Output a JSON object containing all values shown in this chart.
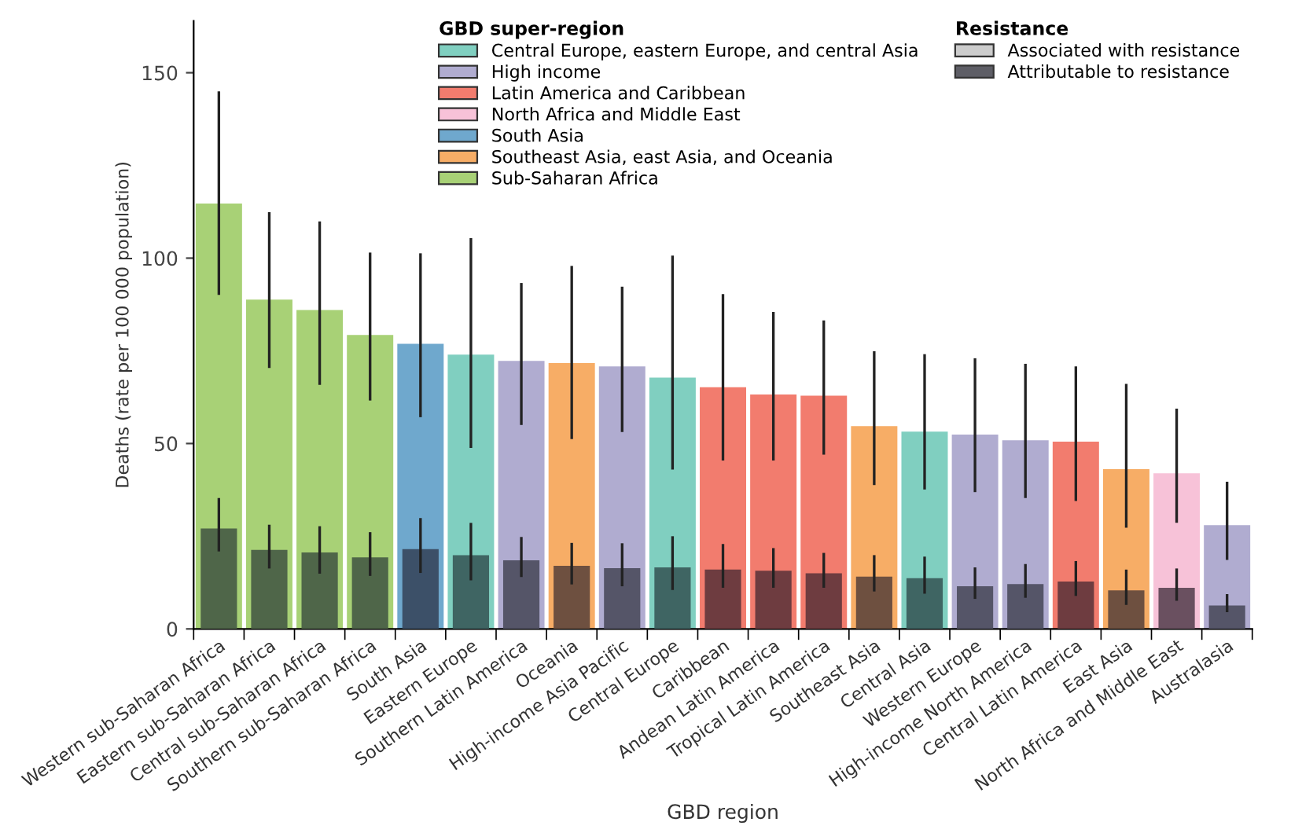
{
  "chart_data": {
    "type": "bar",
    "xlabel": "GBD region",
    "ylabel": "Deaths (rate per 100 000 population)",
    "legend_title": [
      "GBD super-region",
      "Resistance"
    ],
    "legend": "top",
    "grid": false,
    "ylim": [
      0,
      164
    ],
    "yticks": [
      0,
      50,
      100,
      150
    ],
    "categories": [
      "Western sub-Saharan Africa",
      "Eastern sub-Saharan Africa",
      "Central sub-Saharan Africa",
      "Southern sub-Saharan Africa",
      "South Asia",
      "Eastern Europe",
      "Southern Latin America",
      "Oceania",
      "High-income Asia Pacific",
      "Central Europe",
      "Caribbean",
      "Andean Latin America",
      "Tropical Latin America",
      "Southeast Asia",
      "Central Asia",
      "Western Europe",
      "High-income North America",
      "Central Latin America",
      "East Asia",
      "North Africa and Middle East",
      "Australasia"
    ],
    "series": [
      {
        "name": "Central Europe, eastern Europe, and central Asia",
        "color": "#80cfc0",
        "values": [
          null,
          null,
          null,
          null,
          null,
          74.0,
          null,
          null,
          null,
          67.8,
          null,
          null,
          null,
          null,
          53.2,
          null,
          null,
          null,
          null,
          null,
          null
        ],
        "errors": [
          null,
          null,
          null,
          null,
          null,
          [
            48.8,
            105.4
          ],
          null,
          null,
          null,
          [
            43.0,
            100.7
          ],
          null,
          null,
          null,
          null,
          [
            37.6,
            74.1
          ],
          null,
          null,
          null,
          null,
          null,
          null
        ]
      },
      {
        "name": "High income",
        "color": "#b0acd0",
        "values": [
          null,
          null,
          null,
          null,
          null,
          null,
          72.3,
          null,
          70.8,
          null,
          null,
          null,
          null,
          null,
          null,
          52.4,
          50.9,
          null,
          null,
          null,
          28.0
        ],
        "errors": [
          null,
          null,
          null,
          null,
          null,
          null,
          [
            55.0,
            93.3
          ],
          null,
          [
            53.1,
            92.3
          ],
          null,
          null,
          null,
          null,
          null,
          null,
          [
            36.9,
            73.0
          ],
          [
            35.3,
            71.5
          ],
          null,
          null,
          null,
          [
            18.6,
            39.7
          ]
        ]
      },
      {
        "name": "Latin America and Caribbean",
        "color": "#f27c6e",
        "values": [
          null,
          null,
          null,
          null,
          null,
          null,
          null,
          null,
          null,
          null,
          65.2,
          63.2,
          62.9,
          null,
          null,
          null,
          null,
          50.5,
          null,
          null,
          null
        ],
        "errors": [
          null,
          null,
          null,
          null,
          null,
          null,
          null,
          null,
          null,
          null,
          [
            45.4,
            90.3
          ],
          [
            45.4,
            85.5
          ],
          [
            47.0,
            83.2
          ],
          null,
          null,
          null,
          null,
          [
            34.5,
            70.8
          ],
          null,
          null,
          null
        ]
      },
      {
        "name": "North Africa and Middle East",
        "color": "#f7c2d8",
        "values": [
          null,
          null,
          null,
          null,
          null,
          null,
          null,
          null,
          null,
          null,
          null,
          null,
          null,
          null,
          null,
          null,
          null,
          null,
          null,
          42.0,
          null
        ],
        "errors": [
          null,
          null,
          null,
          null,
          null,
          null,
          null,
          null,
          null,
          null,
          null,
          null,
          null,
          null,
          null,
          null,
          null,
          null,
          null,
          [
            28.6,
            59.4
          ],
          null
        ]
      },
      {
        "name": "South Asia",
        "color": "#6fa8cd",
        "values": [
          null,
          null,
          null,
          null,
          76.9,
          null,
          null,
          null,
          null,
          null,
          null,
          null,
          null,
          null,
          null,
          null,
          null,
          null,
          null,
          null,
          null
        ],
        "errors": [
          null,
          null,
          null,
          null,
          [
            57.1,
            101.3
          ],
          null,
          null,
          null,
          null,
          null,
          null,
          null,
          null,
          null,
          null,
          null,
          null,
          null,
          null,
          null,
          null
        ]
      },
      {
        "name": "Southeast Asia, east Asia, and Oceania",
        "color": "#f7ad66",
        "values": [
          null,
          null,
          null,
          null,
          null,
          null,
          null,
          71.7,
          null,
          null,
          null,
          null,
          null,
          54.7,
          null,
          null,
          null,
          null,
          43.1,
          null,
          null
        ],
        "errors": [
          null,
          null,
          null,
          null,
          null,
          null,
          null,
          [
            51.2,
            97.9
          ],
          null,
          null,
          null,
          null,
          null,
          [
            38.8,
            74.9
          ],
          null,
          null,
          null,
          null,
          [
            27.3,
            66.1
          ],
          null,
          null
        ]
      },
      {
        "name": "Sub-Saharan Africa",
        "color": "#a8d176",
        "values": [
          114.7,
          88.8,
          86.0,
          79.3,
          null,
          null,
          null,
          null,
          null,
          null,
          null,
          null,
          null,
          null,
          null,
          null,
          null,
          null,
          null,
          null,
          null
        ],
        "errors": [
          [
            90.1,
            145.0
          ],
          [
            70.4,
            112.4
          ],
          [
            65.8,
            109.9
          ],
          [
            61.6,
            101.5
          ],
          null,
          null,
          null,
          null,
          null,
          null,
          null,
          null,
          null,
          null,
          null,
          null,
          null,
          null,
          null,
          null,
          null
        ]
      },
      {
        "name": "Associated with resistance",
        "color": "#cccccc",
        "values": [
          null,
          null,
          null,
          null,
          null,
          null,
          null,
          null,
          null,
          null,
          null,
          null,
          null,
          null,
          null,
          null,
          null,
          null,
          null,
          null,
          null
        ]
      },
      {
        "name": "Attributable to resistance",
        "color": "#5e5e66",
        "values": [
          27.1,
          21.3,
          20.6,
          19.3,
          21.5,
          19.9,
          18.5,
          17.0,
          16.4,
          16.6,
          16.0,
          15.7,
          15.0,
          14.1,
          13.7,
          11.5,
          12.1,
          12.8,
          10.4,
          11.1,
          6.3
        ],
        "colors": [
          "#4f6649",
          "#4f6649",
          "#4f6649",
          "#4f6649",
          "#3c5068",
          "#3f6563",
          "#555568",
          "#6e5040",
          "#555568",
          "#3f6563",
          "#6e3c40",
          "#6e3c40",
          "#6e3c40",
          "#6e5040",
          "#3f6563",
          "#555568",
          "#555568",
          "#6e3c40",
          "#6e5040",
          "#6a5060",
          "#555568"
        ],
        "errors": [
          [
            20.9,
            35.3
          ],
          [
            16.3,
            28.1
          ],
          [
            14.9,
            27.7
          ],
          [
            14.3,
            26.1
          ],
          [
            15.1,
            29.9
          ],
          [
            13.1,
            28.6
          ],
          [
            14.0,
            24.8
          ],
          [
            12.0,
            23.2
          ],
          [
            11.5,
            23.1
          ],
          [
            10.5,
            25.0
          ],
          [
            11.1,
            22.9
          ],
          [
            11.1,
            21.8
          ],
          [
            11.1,
            20.5
          ],
          [
            10.1,
            19.9
          ],
          [
            9.5,
            19.5
          ],
          [
            8.1,
            16.6
          ],
          [
            8.4,
            17.5
          ],
          [
            8.9,
            18.3
          ],
          [
            6.5,
            16.0
          ],
          [
            7.6,
            16.3
          ],
          [
            4.5,
            9.4
          ]
        ]
      }
    ]
  }
}
